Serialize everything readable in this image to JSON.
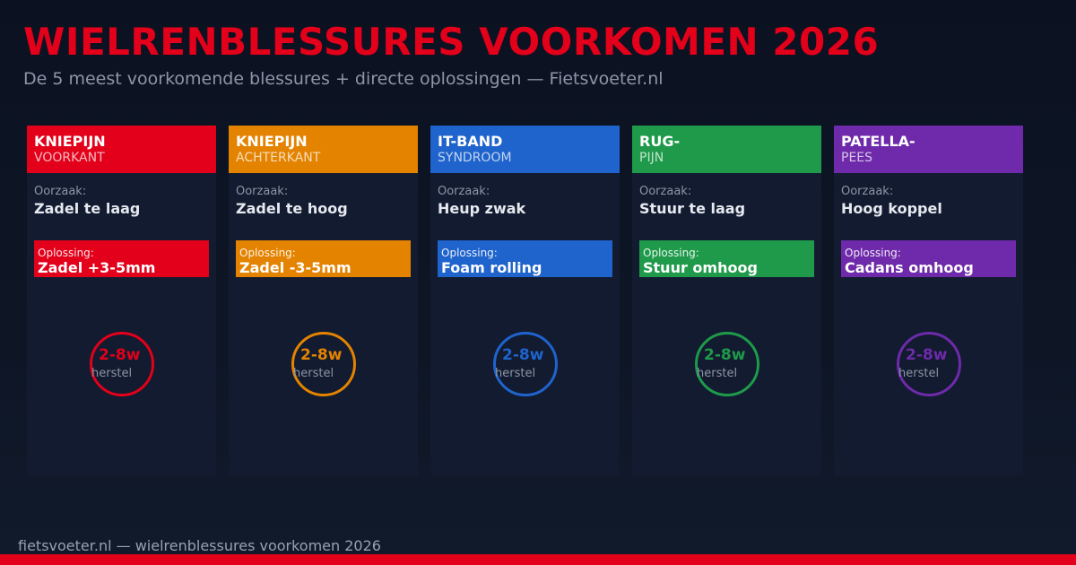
{
  "header": {
    "title": "WIELRENBLESSURES VOORKOMEN 2026",
    "subtitle": "De 5 meest voorkomende blessures + directe oplossingen — Fietsvoeter.nl"
  },
  "cards": [
    {
      "title": "KNIEPIJN",
      "subtitle": "VOORKANT",
      "color": "#e2001a",
      "cause_label": "Oorzaak:",
      "cause": "Zadel te laag",
      "solution_label": "Oplossing:",
      "solution": "Zadel +3-5mm",
      "recovery": "2-8w",
      "recovery_label": "herstel"
    },
    {
      "title": "KNIEPIJN",
      "subtitle": "ACHTERKANT",
      "color": "#e38300",
      "cause_label": "Oorzaak:",
      "cause": "Zadel te hoog",
      "solution_label": "Oplossing:",
      "solution": "Zadel -3-5mm",
      "recovery": "2-8w",
      "recovery_label": "herstel"
    },
    {
      "title": "IT-BAND",
      "subtitle": "SYNDROOM",
      "color": "#1f63cc",
      "cause_label": "Oorzaak:",
      "cause": "Heup zwak",
      "solution_label": "Oplossing:",
      "solution": "Foam rolling",
      "recovery": "2-8w",
      "recovery_label": "herstel"
    },
    {
      "title": "RUG-",
      "subtitle": "PIJN",
      "color": "#1e9a4a",
      "cause_label": "Oorzaak:",
      "cause": "Stuur te laag",
      "solution_label": "Oplossing:",
      "solution": "Stuur omhoog",
      "recovery": "2-8w",
      "recovery_label": "herstel"
    },
    {
      "title": "PATELLA-",
      "subtitle": "PEES",
      "color": "#6e2aaa",
      "cause_label": "Oorzaak:",
      "cause": "Hoog koppel",
      "solution_label": "Oplossing:",
      "solution": "Cadans omhoog",
      "recovery": "2-8w",
      "recovery_label": "herstel"
    }
  ],
  "footer": {
    "text": "fietsvoeter.nl — wielrenblessures voorkomen 2026"
  }
}
